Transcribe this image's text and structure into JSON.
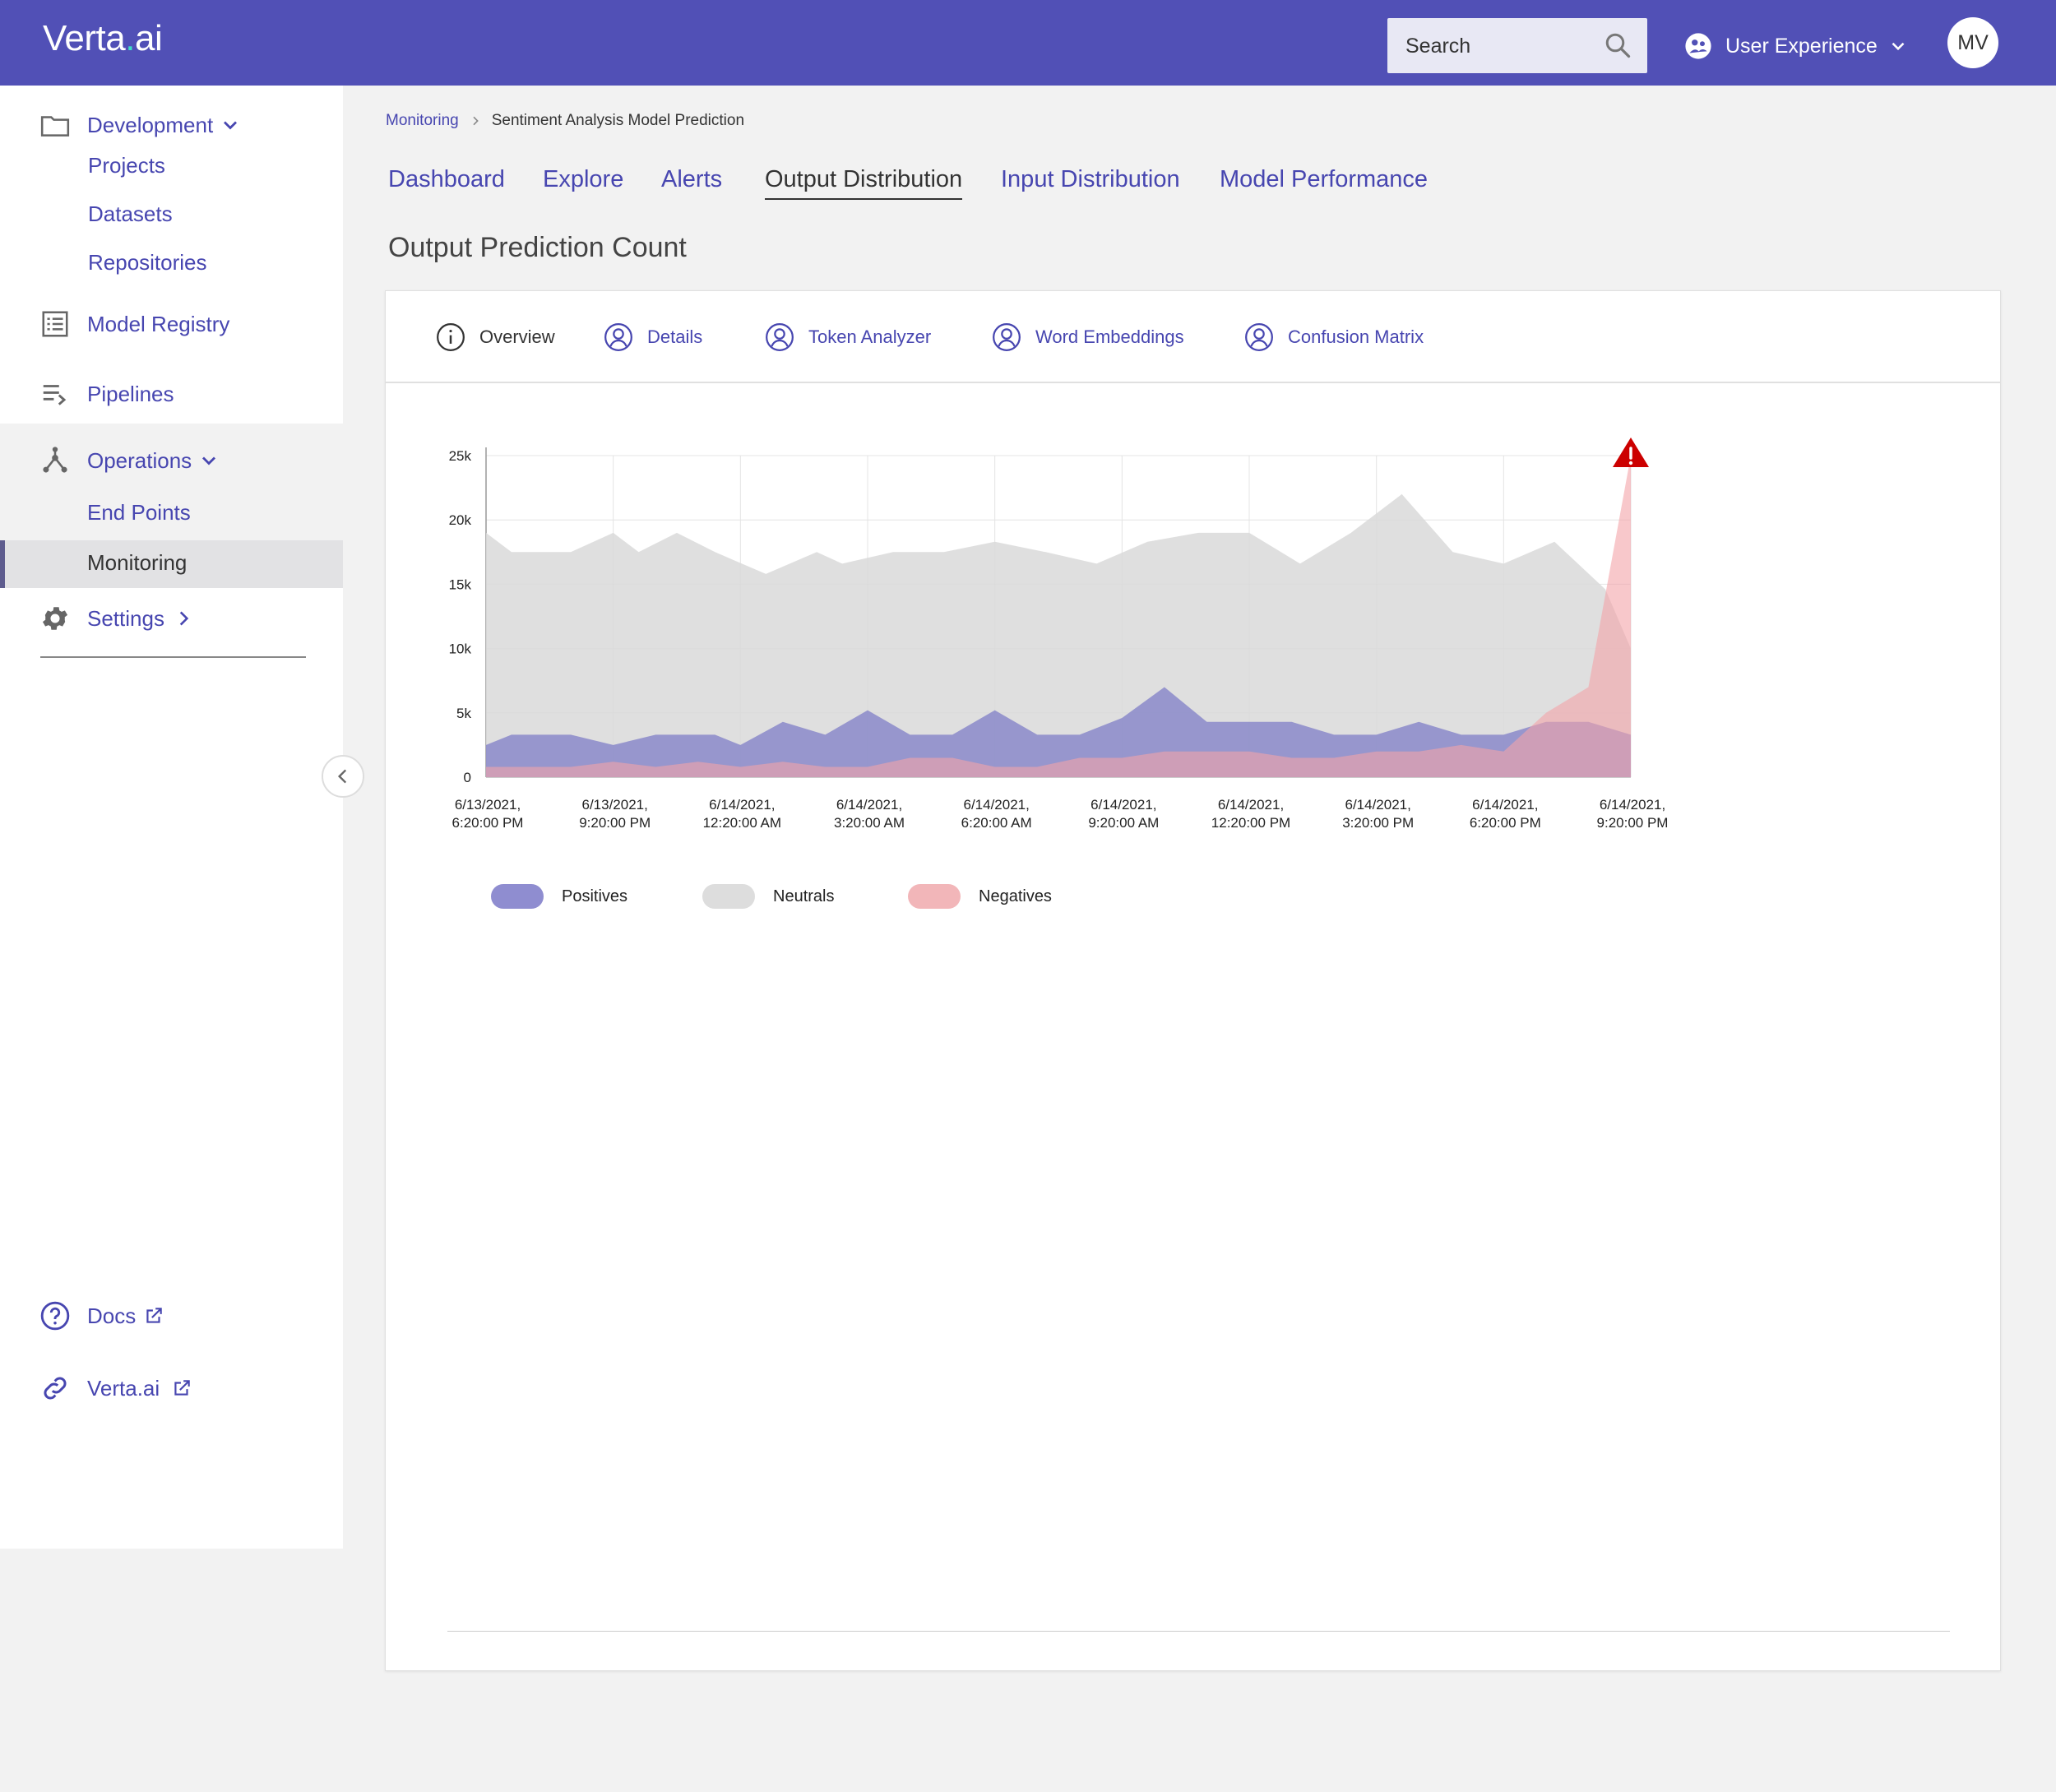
{
  "app": {
    "logo_main": "Verta",
    "logo_dot": ".",
    "logo_tail": "ai"
  },
  "header": {
    "search_placeholder": "Search",
    "workspace": "User Experience",
    "avatar_initials": "MV"
  },
  "sidebar": {
    "development": "Development",
    "projects": "Projects",
    "datasets": "Datasets",
    "repositories": "Repositories",
    "model_registry": "Model Registry",
    "pipelines": "Pipelines",
    "operations": "Operations",
    "end_points": "End Points",
    "monitoring": "Monitoring",
    "settings": "Settings",
    "docs": "Docs",
    "verta": "Verta.ai"
  },
  "breadcrumb": {
    "parent": "Monitoring",
    "current": "Sentiment Analysis Model Prediction"
  },
  "tabs": [
    "Dashboard",
    "Explore",
    "Alerts",
    "Output Distribution",
    "Input Distribution",
    "Model Performance"
  ],
  "active_tab": "Output Distribution",
  "page_title": "Output Prediction Count",
  "subtabs": [
    "Overview",
    "Details",
    "Token Analyzer",
    "Word Embeddings",
    "Confusion Matrix"
  ],
  "colors": {
    "brand": "#5150b6",
    "link": "#4746b0",
    "positives": "#8f8dd0",
    "neutrals": "#dddddd",
    "negatives": "#f2b6b9",
    "alert": "#cc0000"
  },
  "chart_data": {
    "type": "area",
    "title": "Output Prediction Count",
    "ylim": [
      0,
      25000
    ],
    "y_ticks": [
      "25k",
      "20k",
      "15k",
      "10k",
      "5k",
      "0"
    ],
    "x_tick_labels": [
      [
        "6/13/2021,",
        "6:20:00 PM"
      ],
      [
        "6/13/2021,",
        "9:20:00 PM"
      ],
      [
        "6/14/2021,",
        "12:20:00 AM"
      ],
      [
        "6/14/2021,",
        "3:20:00 AM"
      ],
      [
        "6/14/2021,",
        "6:20:00 AM"
      ],
      [
        "6/14/2021,",
        "9:20:00 AM"
      ],
      [
        "6/14/2021,",
        "12:20:00 PM"
      ],
      [
        "6/14/2021,",
        "3:20:00 PM"
      ],
      [
        "6/14/2021,",
        "6:20:00 PM"
      ],
      [
        "6/14/2021,",
        "9:20:00 PM"
      ]
    ],
    "x_range_hours": [
      0,
      27
    ],
    "grid": true,
    "legend_position": "bottom-left",
    "series": [
      {
        "name": "Neutrals",
        "x": [
          0,
          0.6,
          2,
          3,
          3.6,
          4.5,
          5.4,
          6.6,
          7.8,
          8.4,
          9.6,
          10.8,
          12.0,
          13.2,
          14.4,
          15.6,
          16.8,
          18,
          19.2,
          20.4,
          21.6,
          22.8,
          24,
          25.2,
          26.4,
          27
        ],
        "values": [
          19000,
          17500,
          17500,
          19000,
          17500,
          19000,
          17500,
          15800,
          17500,
          16600,
          17500,
          17500,
          18300,
          17500,
          16600,
          18300,
          19000,
          19000,
          16600,
          19000,
          22000,
          17500,
          16600,
          18300,
          14600,
          10000
        ]
      },
      {
        "name": "Positives",
        "x": [
          0,
          0.6,
          2,
          3,
          4,
          5.4,
          6,
          7,
          8,
          9,
          10,
          11,
          12,
          13,
          14,
          15,
          16,
          17,
          18,
          19,
          20,
          21,
          22,
          23,
          24,
          25,
          25.5,
          26,
          27
        ],
        "values": [
          2500,
          3300,
          3300,
          2500,
          3300,
          3300,
          2500,
          4300,
          3300,
          5200,
          3300,
          3300,
          5200,
          3300,
          3300,
          4600,
          7000,
          4300,
          4300,
          4300,
          3300,
          3300,
          4300,
          3300,
          3300,
          4300,
          4300,
          4300,
          3300
        ]
      },
      {
        "name": "Negatives",
        "x": [
          0,
          2,
          3,
          4,
          5,
          6,
          7,
          8,
          9,
          10,
          11,
          12,
          13,
          14,
          15,
          16,
          17,
          18,
          19,
          20,
          21,
          22,
          23,
          24,
          25,
          26,
          27
        ],
        "values": [
          800,
          800,
          1200,
          800,
          1200,
          800,
          1200,
          800,
          800,
          1500,
          1500,
          800,
          800,
          1500,
          1500,
          2000,
          2000,
          2000,
          1500,
          1500,
          2000,
          2000,
          2500,
          2000,
          5000,
          7000,
          25000
        ]
      }
    ]
  }
}
